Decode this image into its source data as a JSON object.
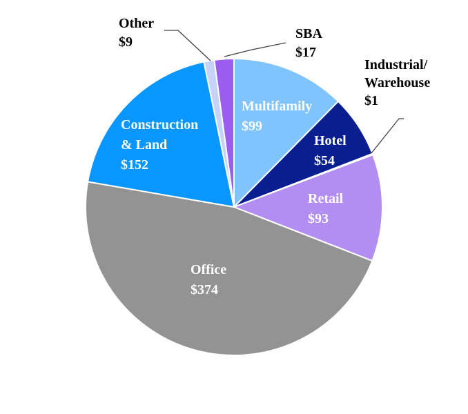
{
  "chart_data": {
    "type": "pie",
    "title": "",
    "legend": "none",
    "slices": [
      {
        "key": "multifamily",
        "label_lines": [
          "Multifamily",
          "$99"
        ],
        "value": 99,
        "color": "#7fc4fd",
        "label_color": "#ffffff"
      },
      {
        "key": "hotel",
        "label_lines": [
          "Hotel",
          "$54"
        ],
        "value": 54,
        "color": "#0a1f8f",
        "label_color": "#ffffff"
      },
      {
        "key": "industrial-warehouse",
        "label_lines": [
          "Industrial/",
          "Warehouse",
          "$1"
        ],
        "value": 1,
        "color": "#0a1f8f",
        "label_color": "#000000"
      },
      {
        "key": "retail",
        "label_lines": [
          "Retail",
          "$93"
        ],
        "value": 93,
        "color": "#b28ef2",
        "label_color": "#ffffff"
      },
      {
        "key": "office",
        "label_lines": [
          "Office",
          "$374"
        ],
        "value": 374,
        "color": "#939393",
        "label_color": "#ffffff"
      },
      {
        "key": "construction-land",
        "label_lines": [
          "Construction",
          "& Land",
          "$152"
        ],
        "value": 152,
        "color": "#0a96ff",
        "label_color": "#ffffff"
      },
      {
        "key": "other",
        "label_lines": [
          "Other",
          "$9"
        ],
        "value": 9,
        "color": "#c5d3f8",
        "label_color": "#000000"
      },
      {
        "key": "sba",
        "label_lines": [
          "SBA",
          "$17"
        ],
        "value": 17,
        "color": "#9b5cf0",
        "label_color": "#000000"
      }
    ]
  }
}
